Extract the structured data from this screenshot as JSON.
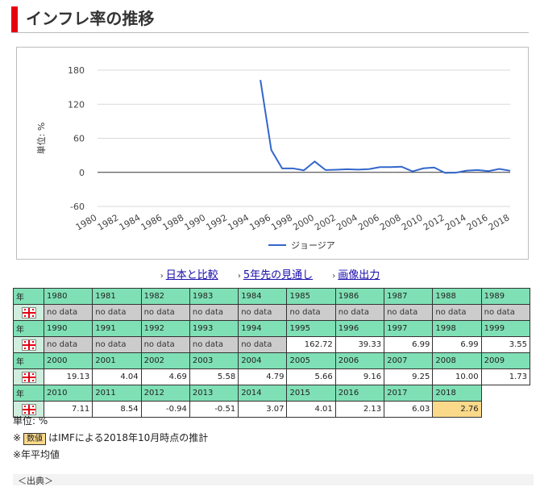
{
  "header": {
    "title": "インフレ率の推移"
  },
  "chart_data": {
    "type": "line",
    "ylabel": "単位: %",
    "ylim": [
      -60,
      180
    ],
    "yticks": [
      180,
      120,
      60,
      0,
      -60
    ],
    "xticks": [
      "1980",
      "1982",
      "1984",
      "1986",
      "1988",
      "1990",
      "1992",
      "1994",
      "1996",
      "1998",
      "2000",
      "2002",
      "2004",
      "2006",
      "2008",
      "2010",
      "2012",
      "2014",
      "2016",
      "2018"
    ],
    "xmin": 1980,
    "xmax": 2018,
    "legend": "bottom",
    "series": [
      {
        "name": "ジョージア",
        "color": "#3366cc",
        "x": [
          1995,
          1996,
          1997,
          1998,
          1999,
          2000,
          2001,
          2002,
          2003,
          2004,
          2005,
          2006,
          2007,
          2008,
          2009,
          2010,
          2011,
          2012,
          2013,
          2014,
          2015,
          2016,
          2017,
          2018
        ],
        "values": [
          162.72,
          39.33,
          6.99,
          6.99,
          3.55,
          19.13,
          4.04,
          4.69,
          5.58,
          4.79,
          5.66,
          9.16,
          9.25,
          10.0,
          1.73,
          7.11,
          8.54,
          -0.94,
          -0.51,
          3.07,
          4.01,
          2.13,
          6.03,
          2.76
        ],
        "estimate_from": 2018
      }
    ]
  },
  "links": [
    {
      "label": "日本と比較"
    },
    {
      "label": "5年先の見通し"
    },
    {
      "label": "画像出力"
    }
  ],
  "table": {
    "year_label": "年",
    "blocks": [
      {
        "years": [
          "1980",
          "1981",
          "1982",
          "1983",
          "1984",
          "1985",
          "1986",
          "1987",
          "1988",
          "1989"
        ],
        "values": [
          "no data",
          "no data",
          "no data",
          "no data",
          "no data",
          "no data",
          "no data",
          "no data",
          "no data",
          "no data"
        ]
      },
      {
        "years": [
          "1990",
          "1991",
          "1992",
          "1993",
          "1994",
          "1995",
          "1996",
          "1997",
          "1998",
          "1999"
        ],
        "values": [
          "no data",
          "no data",
          "no data",
          "no data",
          "no data",
          "162.72",
          "39.33",
          "6.99",
          "6.99",
          "3.55"
        ]
      },
      {
        "years": [
          "2000",
          "2001",
          "2002",
          "2003",
          "2004",
          "2005",
          "2006",
          "2007",
          "2008",
          "2009"
        ],
        "values": [
          "19.13",
          "4.04",
          "4.69",
          "5.58",
          "4.79",
          "5.66",
          "9.16",
          "9.25",
          "10.00",
          "1.73"
        ]
      },
      {
        "years": [
          "2010",
          "2011",
          "2012",
          "2013",
          "2014",
          "2015",
          "2016",
          "2017",
          "2018",
          ""
        ],
        "values": [
          "7.11",
          "8.54",
          "-0.94",
          "-0.51",
          "3.07",
          "4.01",
          "2.13",
          "6.03",
          "2.76",
          ""
        ],
        "estimate_index": 8
      }
    ]
  },
  "notes": {
    "unit": "単位: %",
    "estimate_prefix": "※",
    "estimate_swatch": "数値",
    "estimate_text": "はIMFによる2018年10月時点の推計",
    "avg": "※年平均値",
    "source": "＜出典＞"
  }
}
